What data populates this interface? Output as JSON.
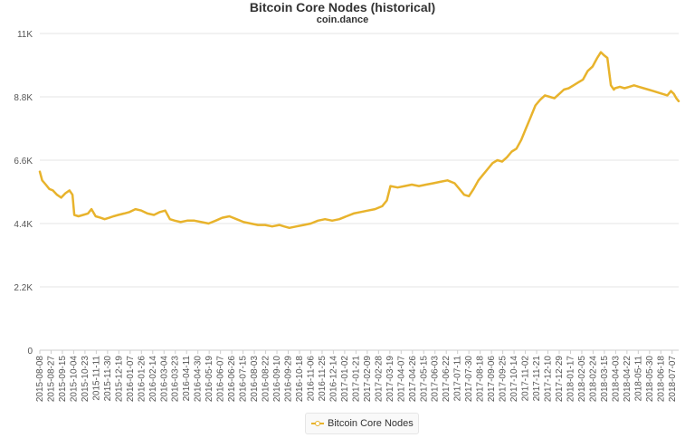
{
  "chart_data": {
    "type": "line",
    "title": "Bitcoin Core Nodes (historical)",
    "subtitle": "coin.dance",
    "ylim": [
      0,
      11000
    ],
    "y_ticks": [
      {
        "value": 0,
        "label": "0"
      },
      {
        "value": 2200,
        "label": "2.2K"
      },
      {
        "value": 4400,
        "label": "4.4K"
      },
      {
        "value": 6600,
        "label": "6.6K"
      },
      {
        "value": 8800,
        "label": "8.8K"
      },
      {
        "value": 11000,
        "label": "11K"
      }
    ],
    "x_range": [
      "2015-08-08",
      "2018-07-18"
    ],
    "x_tick_labels": [
      "2015-08-08",
      "2015-08-27",
      "2015-09-15",
      "2015-10-04",
      "2015-10-23",
      "2015-11-11",
      "2015-11-30",
      "2015-12-19",
      "2016-01-07",
      "2016-01-26",
      "2016-02-14",
      "2016-03-04",
      "2016-03-23",
      "2016-04-11",
      "2016-04-30",
      "2016-05-19",
      "2016-06-07",
      "2016-06-26",
      "2016-07-15",
      "2016-08-03",
      "2016-08-22",
      "2016-09-10",
      "2016-09-29",
      "2016-10-18",
      "2016-11-06",
      "2016-11-25",
      "2016-12-14",
      "2017-01-02",
      "2017-01-21",
      "2017-02-09",
      "2017-02-28",
      "2017-03-19",
      "2017-04-07",
      "2017-04-26",
      "2017-05-15",
      "2017-06-03",
      "2017-06-22",
      "2017-07-11",
      "2017-07-30",
      "2017-08-18",
      "2017-09-06",
      "2017-09-25",
      "2017-10-14",
      "2017-11-02",
      "2017-11-21",
      "2017-12-10",
      "2017-12-29",
      "2018-01-17",
      "2018-02-05",
      "2018-02-24",
      "2018-03-15",
      "2018-04-03",
      "2018-04-22",
      "2018-05-11",
      "2018-05-30",
      "2018-06-18",
      "2018-07-07"
    ],
    "series": [
      {
        "name": "Bitcoin Core Nodes",
        "color": "#e8b32c",
        "x": [
          "2015-08-08",
          "2015-08-12",
          "2015-08-18",
          "2015-08-24",
          "2015-08-30",
          "2015-09-06",
          "2015-09-13",
          "2015-09-20",
          "2015-09-27",
          "2015-10-02",
          "2015-10-05",
          "2015-10-12",
          "2015-10-20",
          "2015-10-28",
          "2015-11-03",
          "2015-11-10",
          "2015-11-18",
          "2015-11-25",
          "2015-12-03",
          "2015-12-10",
          "2015-12-18",
          "2015-12-28",
          "2016-01-06",
          "2016-01-16",
          "2016-01-26",
          "2016-02-05",
          "2016-02-16",
          "2016-02-26",
          "2016-03-06",
          "2016-03-14",
          "2016-03-22",
          "2016-04-01",
          "2016-04-12",
          "2016-04-24",
          "2016-05-06",
          "2016-05-18",
          "2016-05-30",
          "2016-06-10",
          "2016-06-22",
          "2016-07-04",
          "2016-07-16",
          "2016-07-28",
          "2016-08-09",
          "2016-08-21",
          "2016-09-02",
          "2016-09-14",
          "2016-09-22",
          "2016-10-01",
          "2016-10-13",
          "2016-10-25",
          "2016-11-06",
          "2016-11-18",
          "2016-11-30",
          "2016-12-12",
          "2016-12-24",
          "2017-01-05",
          "2017-01-17",
          "2017-01-29",
          "2017-02-10",
          "2017-02-22",
          "2017-03-06",
          "2017-03-14",
          "2017-03-20",
          "2017-04-01",
          "2017-04-13",
          "2017-04-25",
          "2017-05-07",
          "2017-05-19",
          "2017-05-31",
          "2017-06-12",
          "2017-06-24",
          "2017-07-06",
          "2017-07-14",
          "2017-07-22",
          "2017-07-30",
          "2017-08-07",
          "2017-08-15",
          "2017-08-23",
          "2017-08-31",
          "2017-09-08",
          "2017-09-16",
          "2017-09-24",
          "2017-10-02",
          "2017-10-10",
          "2017-10-18",
          "2017-10-26",
          "2017-11-03",
          "2017-11-11",
          "2017-11-19",
          "2017-11-27",
          "2017-12-05",
          "2017-12-13",
          "2017-12-21",
          "2017-12-29",
          "2018-01-06",
          "2018-01-14",
          "2018-01-22",
          "2018-01-30",
          "2018-02-07",
          "2018-02-15",
          "2018-02-23",
          "2018-03-03",
          "2018-03-09",
          "2018-03-14",
          "2018-03-20",
          "2018-03-26",
          "2018-03-31",
          "2018-04-02",
          "2018-04-10",
          "2018-04-18",
          "2018-04-26",
          "2018-05-04",
          "2018-05-12",
          "2018-05-20",
          "2018-05-28",
          "2018-06-05",
          "2018-06-13",
          "2018-06-21",
          "2018-06-29",
          "2018-07-05",
          "2018-07-10",
          "2018-07-14",
          "2018-07-18"
        ],
        "values": [
          6200,
          5900,
          5750,
          5600,
          5550,
          5400,
          5300,
          5450,
          5550,
          5400,
          4700,
          4650,
          4700,
          4750,
          4900,
          4650,
          4600,
          4550,
          4600,
          4650,
          4700,
          4750,
          4800,
          4900,
          4850,
          4750,
          4700,
          4800,
          4850,
          4550,
          4500,
          4450,
          4500,
          4500,
          4450,
          4400,
          4500,
          4600,
          4650,
          4550,
          4450,
          4400,
          4350,
          4350,
          4300,
          4350,
          4300,
          4250,
          4300,
          4350,
          4400,
          4500,
          4550,
          4500,
          4550,
          4650,
          4750,
          4800,
          4850,
          4900,
          5000,
          5200,
          5700,
          5650,
          5700,
          5750,
          5700,
          5750,
          5800,
          5850,
          5900,
          5800,
          5600,
          5400,
          5350,
          5600,
          5900,
          6100,
          6300,
          6500,
          6600,
          6550,
          6700,
          6900,
          7000,
          7300,
          7700,
          8100,
          8500,
          8700,
          8850,
          8800,
          8750,
          8900,
          9050,
          9100,
          9200,
          9300,
          9400,
          9700,
          9850,
          10150,
          10350,
          10250,
          10150,
          9200,
          9050,
          9100,
          9150,
          9100,
          9150,
          9200,
          9150,
          9100,
          9050,
          9000,
          8950,
          8900,
          8850,
          9000,
          8900,
          8750,
          8650
        ]
      }
    ],
    "legend": {
      "label": "Bitcoin Core Nodes",
      "placement": "bottom-center"
    },
    "grid": true
  }
}
